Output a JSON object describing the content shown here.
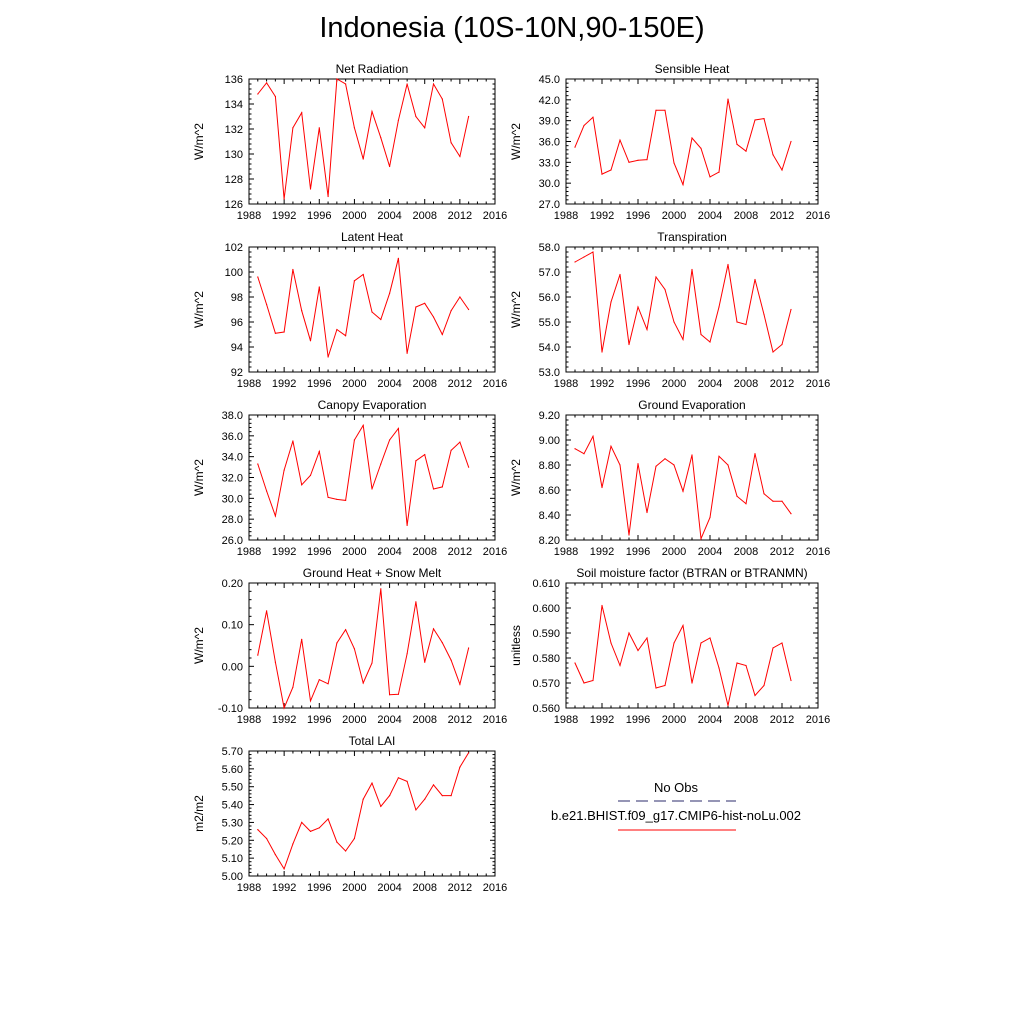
{
  "page_title": "Indonesia (10S-10N,90-150E)",
  "colors": {
    "model_line": "#ff0000",
    "obs_line": "#2b2b6b",
    "axis": "#000000"
  },
  "legend": {
    "obs_label": "No Obs",
    "model_label": "b.e21.BHIST.f09_g17.CMIP6-hist-noLu.002"
  },
  "chart_data": [
    {
      "type": "line",
      "title": "Net Radiation",
      "ylabel": "W/m^2",
      "xlim": [
        1988,
        2016
      ],
      "ylim": [
        126,
        136
      ],
      "xticks": [
        1988,
        1992,
        1996,
        2000,
        2004,
        2008,
        2012,
        2016
      ],
      "xtick_labels": [
        "1988",
        "1992",
        "1996",
        "2000",
        "2004",
        "2008",
        "2012",
        "2016"
      ],
      "yticks": [
        126,
        128,
        130,
        132,
        134,
        136
      ],
      "ytick_labels": [
        "126",
        "128",
        "130",
        "132",
        "134",
        "136"
      ],
      "x": [
        1989,
        1990,
        1991,
        1992,
        1993,
        1994,
        1995,
        1996,
        1997,
        1998,
        1999,
        2000,
        2001,
        2002,
        2003,
        2004,
        2005,
        2006,
        2007,
        2008,
        2009,
        2010,
        2011,
        2012,
        2013
      ],
      "values": [
        134.8,
        135.7,
        134.6,
        126.4,
        132.1,
        133.3,
        127.2,
        132.1,
        126.6,
        136.0,
        135.6,
        132.1,
        129.6,
        133.4,
        131.3,
        129.0,
        132.7,
        135.6,
        133.0,
        132.1,
        135.6,
        134.4,
        130.9,
        129.8,
        133.0
      ]
    },
    {
      "type": "line",
      "title": "Sensible Heat",
      "ylabel": "W/m^2",
      "xlim": [
        1988,
        2016
      ],
      "ylim": [
        27,
        45
      ],
      "xticks": [
        1988,
        1992,
        1996,
        2000,
        2004,
        2008,
        2012,
        2016
      ],
      "xtick_labels": [
        "1988",
        "1992",
        "1996",
        "2000",
        "2004",
        "2008",
        "2012",
        "2016"
      ],
      "yticks": [
        27,
        30,
        33,
        36,
        39,
        42,
        45
      ],
      "ytick_labels": [
        "27.0",
        "30.0",
        "33.0",
        "36.0",
        "39.0",
        "42.0",
        "45.0"
      ],
      "x": [
        1989,
        1990,
        1991,
        1992,
        1993,
        1994,
        1995,
        1996,
        1997,
        1998,
        1999,
        2000,
        2001,
        2002,
        2003,
        2004,
        2005,
        2006,
        2007,
        2008,
        2009,
        2010,
        2011,
        2012,
        2013
      ],
      "values": [
        35.2,
        38.3,
        39.5,
        31.3,
        31.9,
        36.2,
        33.0,
        33.3,
        33.4,
        40.5,
        40.5,
        32.9,
        29.8,
        36.5,
        35.0,
        30.9,
        31.6,
        42.1,
        35.6,
        34.6,
        39.1,
        39.3,
        34.1,
        31.9,
        36.0
      ]
    },
    {
      "type": "line",
      "title": "Latent Heat",
      "ylabel": "W/m^2",
      "xlim": [
        1988,
        2016
      ],
      "ylim": [
        92,
        102
      ],
      "xticks": [
        1988,
        1992,
        1996,
        2000,
        2004,
        2008,
        2012,
        2016
      ],
      "xtick_labels": [
        "1988",
        "1992",
        "1996",
        "2000",
        "2004",
        "2008",
        "2012",
        "2016"
      ],
      "yticks": [
        92,
        94,
        96,
        98,
        100,
        102
      ],
      "ytick_labels": [
        "92",
        "94",
        "96",
        "98",
        "100",
        "102"
      ],
      "x": [
        1989,
        1990,
        1991,
        1992,
        1993,
        1994,
        1995,
        1996,
        1997,
        1998,
        1999,
        2000,
        2001,
        2002,
        2003,
        2004,
        2005,
        2006,
        2007,
        2008,
        2009,
        2010,
        2011,
        2012,
        2013
      ],
      "values": [
        99.6,
        97.4,
        95.1,
        95.2,
        100.2,
        96.9,
        94.5,
        98.8,
        93.2,
        95.4,
        94.9,
        99.3,
        99.8,
        96.8,
        96.2,
        98.3,
        101.1,
        93.5,
        97.2,
        97.5,
        96.4,
        95.0,
        96.9,
        98.0,
        97.0
      ]
    },
    {
      "type": "line",
      "title": "Transpiration",
      "ylabel": "W/m^2",
      "xlim": [
        1988,
        2016
      ],
      "ylim": [
        53,
        58
      ],
      "xticks": [
        1988,
        1992,
        1996,
        2000,
        2004,
        2008,
        2012,
        2016
      ],
      "xtick_labels": [
        "1988",
        "1992",
        "1996",
        "2000",
        "2004",
        "2008",
        "2012",
        "2016"
      ],
      "yticks": [
        53,
        54,
        55,
        56,
        57,
        58
      ],
      "ytick_labels": [
        "53.0",
        "54.0",
        "55.0",
        "56.0",
        "57.0",
        "58.0"
      ],
      "x": [
        1989,
        1990,
        1991,
        1992,
        1993,
        1994,
        1995,
        1996,
        1997,
        1998,
        1999,
        2000,
        2001,
        2002,
        2003,
        2004,
        2005,
        2006,
        2007,
        2008,
        2009,
        2010,
        2011,
        2012,
        2013
      ],
      "values": [
        57.4,
        57.6,
        57.8,
        53.8,
        55.8,
        56.9,
        54.1,
        55.6,
        54.7,
        56.8,
        56.3,
        55.0,
        54.3,
        57.1,
        54.5,
        54.2,
        55.6,
        57.3,
        55.0,
        54.9,
        56.7,
        55.3,
        53.8,
        54.1,
        55.5
      ]
    },
    {
      "type": "line",
      "title": "Canopy Evaporation",
      "ylabel": "W/m^2",
      "xlim": [
        1988,
        2016
      ],
      "ylim": [
        26,
        38
      ],
      "xticks": [
        1988,
        1992,
        1996,
        2000,
        2004,
        2008,
        2012,
        2016
      ],
      "xtick_labels": [
        "1988",
        "1992",
        "1996",
        "2000",
        "2004",
        "2008",
        "2012",
        "2016"
      ],
      "yticks": [
        26,
        28,
        30,
        32,
        34,
        36,
        38
      ],
      "ytick_labels": [
        "26.0",
        "28.0",
        "30.0",
        "32.0",
        "34.0",
        "36.0",
        "38.0"
      ],
      "x": [
        1989,
        1990,
        1991,
        1992,
        1993,
        1994,
        1995,
        1996,
        1997,
        1998,
        1999,
        2000,
        2001,
        2002,
        2003,
        2004,
        2005,
        2006,
        2007,
        2008,
        2009,
        2010,
        2011,
        2012,
        2013
      ],
      "values": [
        33.3,
        30.7,
        28.3,
        32.7,
        35.5,
        31.3,
        32.2,
        34.5,
        30.1,
        29.9,
        29.8,
        35.6,
        37.0,
        30.9,
        33.3,
        35.6,
        36.7,
        27.4,
        33.6,
        34.2,
        30.9,
        31.1,
        34.6,
        35.4,
        33.0
      ]
    },
    {
      "type": "line",
      "title": "Ground Evaporation",
      "ylabel": "W/m^2",
      "xlim": [
        1988,
        2016
      ],
      "ylim": [
        8.2,
        9.2
      ],
      "xticks": [
        1988,
        1992,
        1996,
        2000,
        2004,
        2008,
        2012,
        2016
      ],
      "xtick_labels": [
        "1988",
        "1992",
        "1996",
        "2000",
        "2004",
        "2008",
        "2012",
        "2016"
      ],
      "yticks": [
        8.2,
        8.4,
        8.6,
        8.8,
        9.0,
        9.2
      ],
      "ytick_labels": [
        "8.20",
        "8.40",
        "8.60",
        "8.80",
        "9.00",
        "9.20"
      ],
      "x": [
        1989,
        1990,
        1991,
        1992,
        1993,
        1994,
        1995,
        1996,
        1997,
        1998,
        1999,
        2000,
        2001,
        2002,
        2003,
        2004,
        2005,
        2006,
        2007,
        2008,
        2009,
        2010,
        2011,
        2012,
        2013
      ],
      "values": [
        8.93,
        8.89,
        9.03,
        8.62,
        8.95,
        8.8,
        8.24,
        8.81,
        8.42,
        8.79,
        8.85,
        8.8,
        8.59,
        8.88,
        8.21,
        8.38,
        8.87,
        8.8,
        8.55,
        8.49,
        8.89,
        8.57,
        8.51,
        8.51,
        8.41
      ]
    },
    {
      "type": "line",
      "title": "Ground Heat + Snow Melt",
      "ylabel": "W/m^2",
      "xlim": [
        1988,
        2016
      ],
      "ylim": [
        -0.1,
        0.2
      ],
      "xticks": [
        1988,
        1992,
        1996,
        2000,
        2004,
        2008,
        2012,
        2016
      ],
      "xtick_labels": [
        "1988",
        "1992",
        "1996",
        "2000",
        "2004",
        "2008",
        "2012",
        "2016"
      ],
      "yticks": [
        -0.1,
        0.0,
        0.1,
        0.2
      ],
      "ytick_labels": [
        "-0.10",
        "0.00",
        "0.10",
        "0.20"
      ],
      "x": [
        1989,
        1990,
        1991,
        1992,
        1993,
        1994,
        1995,
        1996,
        1997,
        1998,
        1999,
        2000,
        2001,
        2002,
        2003,
        2004,
        2005,
        2006,
        2007,
        2008,
        2009,
        2010,
        2011,
        2012,
        2013
      ],
      "values": [
        0.027,
        0.133,
        0.01,
        -0.1,
        -0.05,
        0.065,
        -0.083,
        -0.032,
        -0.042,
        0.056,
        0.088,
        0.042,
        -0.04,
        0.008,
        0.186,
        -0.068,
        -0.067,
        0.03,
        0.155,
        0.01,
        0.09,
        0.057,
        0.015,
        -0.043,
        0.044
      ]
    },
    {
      "type": "line",
      "title": "Soil moisture factor (BTRAN or BTRANMN)",
      "ylabel": "unitless",
      "xlim": [
        1988,
        2016
      ],
      "ylim": [
        0.56,
        0.61
      ],
      "xticks": [
        1988,
        1992,
        1996,
        2000,
        2004,
        2008,
        2012,
        2016
      ],
      "xtick_labels": [
        "1988",
        "1992",
        "1996",
        "2000",
        "2004",
        "2008",
        "2012",
        "2016"
      ],
      "yticks": [
        0.56,
        0.57,
        0.58,
        0.59,
        0.6,
        0.61
      ],
      "ytick_labels": [
        "0.560",
        "0.570",
        "0.580",
        "0.590",
        "0.600",
        "0.610"
      ],
      "x": [
        1989,
        1990,
        1991,
        1992,
        1993,
        1994,
        1995,
        1996,
        1997,
        1998,
        1999,
        2000,
        2001,
        2002,
        2003,
        2004,
        2005,
        2006,
        2007,
        2008,
        2009,
        2010,
        2011,
        2012,
        2013
      ],
      "values": [
        0.578,
        0.57,
        0.571,
        0.601,
        0.586,
        0.577,
        0.59,
        0.583,
        0.588,
        0.568,
        0.569,
        0.586,
        0.593,
        0.57,
        0.586,
        0.588,
        0.576,
        0.561,
        0.578,
        0.577,
        0.565,
        0.569,
        0.584,
        0.586,
        0.571
      ]
    },
    {
      "type": "line",
      "title": "Total LAI",
      "ylabel": "m2/m2",
      "xlim": [
        1988,
        2016
      ],
      "ylim": [
        5.0,
        5.7
      ],
      "xticks": [
        1988,
        1992,
        1996,
        2000,
        2004,
        2008,
        2012,
        2016
      ],
      "xtick_labels": [
        "1988",
        "1992",
        "1996",
        "2000",
        "2004",
        "2008",
        "2012",
        "2016"
      ],
      "yticks": [
        5.0,
        5.1,
        5.2,
        5.3,
        5.4,
        5.5,
        5.6,
        5.7
      ],
      "ytick_labels": [
        "5.00",
        "5.10",
        "5.20",
        "5.30",
        "5.40",
        "5.50",
        "5.60",
        "5.70"
      ],
      "x": [
        1989,
        1990,
        1991,
        1992,
        1993,
        1994,
        1995,
        1996,
        1997,
        1998,
        1999,
        2000,
        2001,
        2002,
        2003,
        2004,
        2005,
        2006,
        2007,
        2008,
        2009,
        2010,
        2011,
        2012,
        2013
      ],
      "values": [
        5.26,
        5.21,
        5.12,
        5.04,
        5.18,
        5.3,
        5.25,
        5.27,
        5.32,
        5.19,
        5.14,
        5.21,
        5.43,
        5.52,
        5.39,
        5.45,
        5.55,
        5.53,
        5.37,
        5.43,
        5.51,
        5.45,
        5.45,
        5.61,
        5.69
      ]
    }
  ]
}
